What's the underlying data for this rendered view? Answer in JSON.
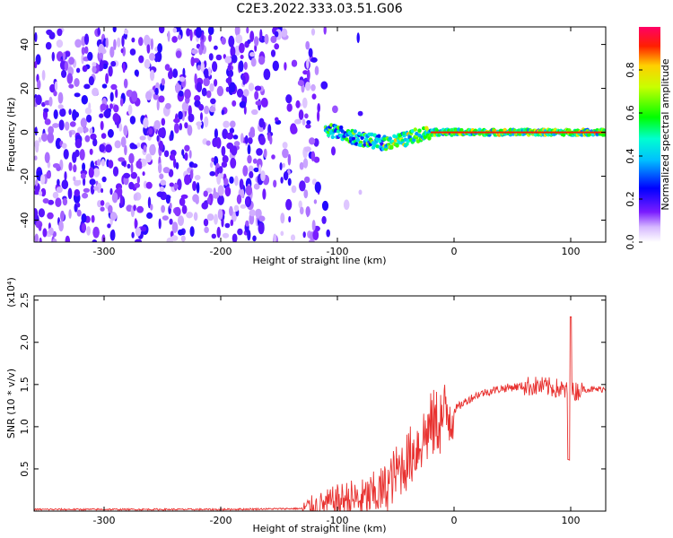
{
  "title": "C2E3.2022.333.03.51.G06",
  "chart_data": [
    {
      "type": "heatmap",
      "xlabel": "Height of straight line (km)",
      "ylabel": "Frequency (Hz)",
      "xlim": [
        -360,
        130
      ],
      "ylim": [
        -50,
        48
      ],
      "x_ticks": [
        -300,
        -200,
        -100,
        0,
        100
      ],
      "y_ticks": [
        -40,
        -20,
        0,
        20,
        40
      ],
      "colorbar": {
        "label": "Normalized spectral amplitude",
        "range": [
          0.0,
          1.0
        ],
        "ticks": [
          "0.0",
          "0.2",
          "0.4",
          "0.6",
          "0.8"
        ],
        "colors": [
          "#ffffff",
          "#b388ff",
          "#5a00e6",
          "#0000ff",
          "#00e5ff",
          "#00ff00",
          "#ffff00",
          "#ff0000",
          "#ff0066"
        ]
      },
      "ridge": {
        "x": [
          -110,
          -100,
          -90,
          -80,
          -70,
          -60,
          -50,
          -40,
          -30,
          -20,
          -10,
          0,
          20,
          40,
          60,
          80,
          100,
          130
        ],
        "y": [
          2,
          0,
          -2,
          -3,
          -4,
          -5,
          -4,
          -3,
          -1,
          0,
          0,
          0,
          0,
          0,
          0,
          0,
          0,
          0
        ]
      }
    },
    {
      "type": "line",
      "xlabel": "Height of straight line (km)",
      "ylabel": "SNR (10 * v/v)",
      "scale_label": "(x10⁴)",
      "xlim": [
        -360,
        130
      ],
      "ylim": [
        0,
        2.55
      ],
      "x_ticks": [
        -300,
        -200,
        -100,
        0,
        100
      ],
      "y_ticks": [
        "0.5",
        "1.0",
        "1.5",
        "2.0",
        "2.5"
      ],
      "series": [
        {
          "color": "#e8312f",
          "x": [
            -360,
            -300,
            -200,
            -130,
            -120,
            -110,
            -100,
            -90,
            -80,
            -70,
            -60,
            -50,
            -40,
            -30,
            -20,
            -10,
            0,
            10,
            20,
            30,
            40,
            50,
            60,
            70,
            80,
            90,
            100,
            110,
            120,
            130
          ],
          "y": [
            0.02,
            0.02,
            0.02,
            0.03,
            0.05,
            0.08,
            0.12,
            0.15,
            0.12,
            0.18,
            0.25,
            0.45,
            0.6,
            0.8,
            1.0,
            1.1,
            1.2,
            1.3,
            1.38,
            1.42,
            1.45,
            1.47,
            1.48,
            1.48,
            1.47,
            1.45,
            1.4,
            1.45,
            1.44,
            1.45
          ]
        }
      ]
    }
  ]
}
